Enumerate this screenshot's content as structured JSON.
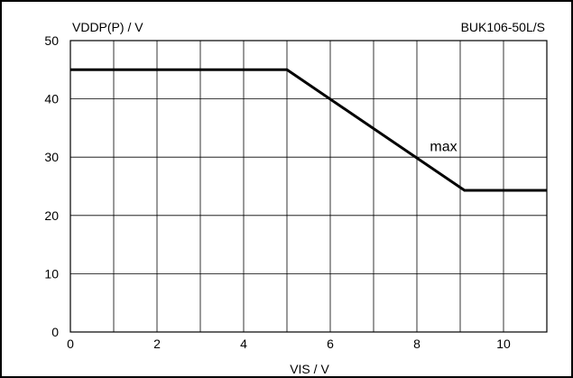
{
  "chart_data": {
    "type": "line",
    "ylabel": "VDDP(P) / V",
    "xlabel": "VIS / V",
    "identifier": "BUK106-50L/S",
    "annotation": {
      "text": "max",
      "x": 8.3,
      "y": 32
    },
    "xlim": [
      0,
      11
    ],
    "ylim": [
      0,
      50
    ],
    "x_ticks": [
      0,
      2,
      4,
      6,
      8,
      10
    ],
    "y_ticks": [
      0,
      10,
      20,
      30,
      40,
      50
    ],
    "grid": true,
    "grid_x_step": 1,
    "grid_y_step": 10,
    "series": [
      {
        "x": [
          0,
          5,
          9.1,
          11
        ],
        "y": [
          45,
          45,
          24.3,
          24.3
        ]
      }
    ]
  }
}
